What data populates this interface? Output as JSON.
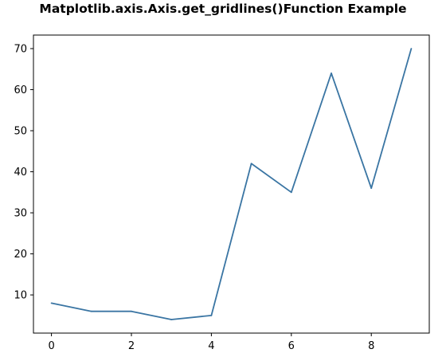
{
  "chart_data": {
    "type": "line",
    "title": "Matplotlib.axis.Axis.get_gridlines()Function Example",
    "xlabel": "",
    "ylabel": "",
    "x": [
      0,
      1,
      2,
      3,
      4,
      5,
      6,
      7,
      8,
      9
    ],
    "series": [
      {
        "values": [
          8,
          6,
          6,
          4,
          5,
          42,
          35,
          64,
          36,
          70
        ],
        "color": "#3a75a3"
      }
    ],
    "xlim": [
      -0.45,
      9.45
    ],
    "ylim": [
      0.7,
      73.3
    ],
    "xticks": [
      0,
      2,
      4,
      6,
      8
    ],
    "yticks": [
      10,
      20,
      30,
      40,
      50,
      60,
      70
    ],
    "grid": false,
    "legend": "none"
  }
}
